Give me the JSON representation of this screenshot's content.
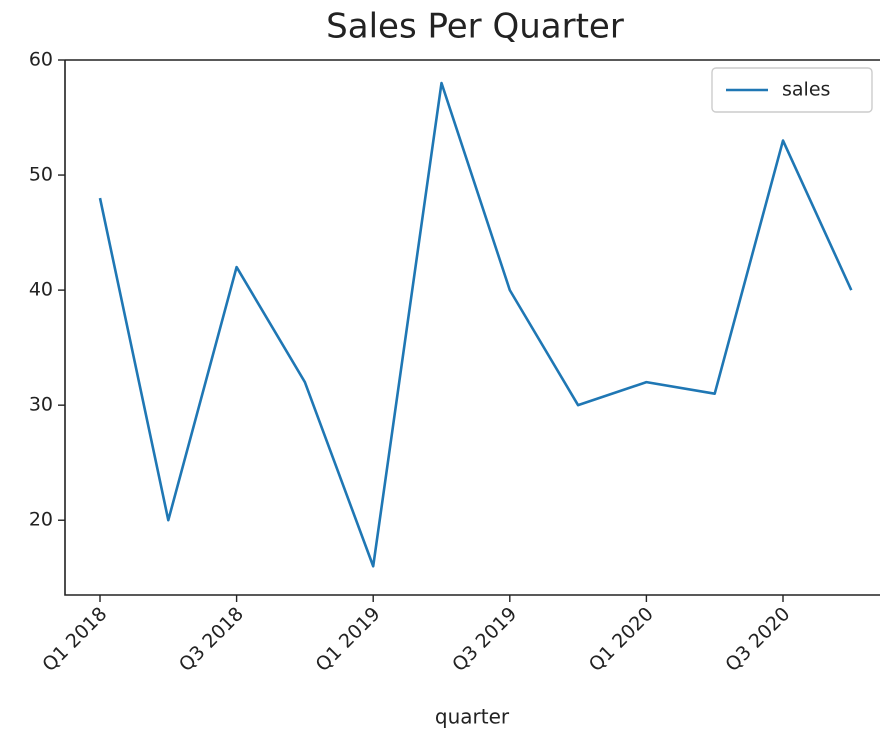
{
  "chart_data": {
    "type": "line",
    "title": "Sales Per Quarter",
    "x_label": "quarter",
    "categories": [
      "Q1 2018",
      null,
      "Q3 2018",
      null,
      "Q1 2019",
      null,
      "Q3 2019",
      null,
      "Q1 2020",
      null,
      "Q3 2020",
      null
    ],
    "series": [
      {
        "name": "sales",
        "color": "#1f77b4",
        "values": [
          48,
          20,
          42,
          32,
          16,
          58,
          40,
          30,
          32,
          31,
          53,
          40
        ]
      }
    ],
    "ylim": [
      13.5,
      60
    ],
    "yticks": [
      20,
      30,
      40,
      50,
      60
    ],
    "grid": false,
    "legend": "upper right"
  }
}
